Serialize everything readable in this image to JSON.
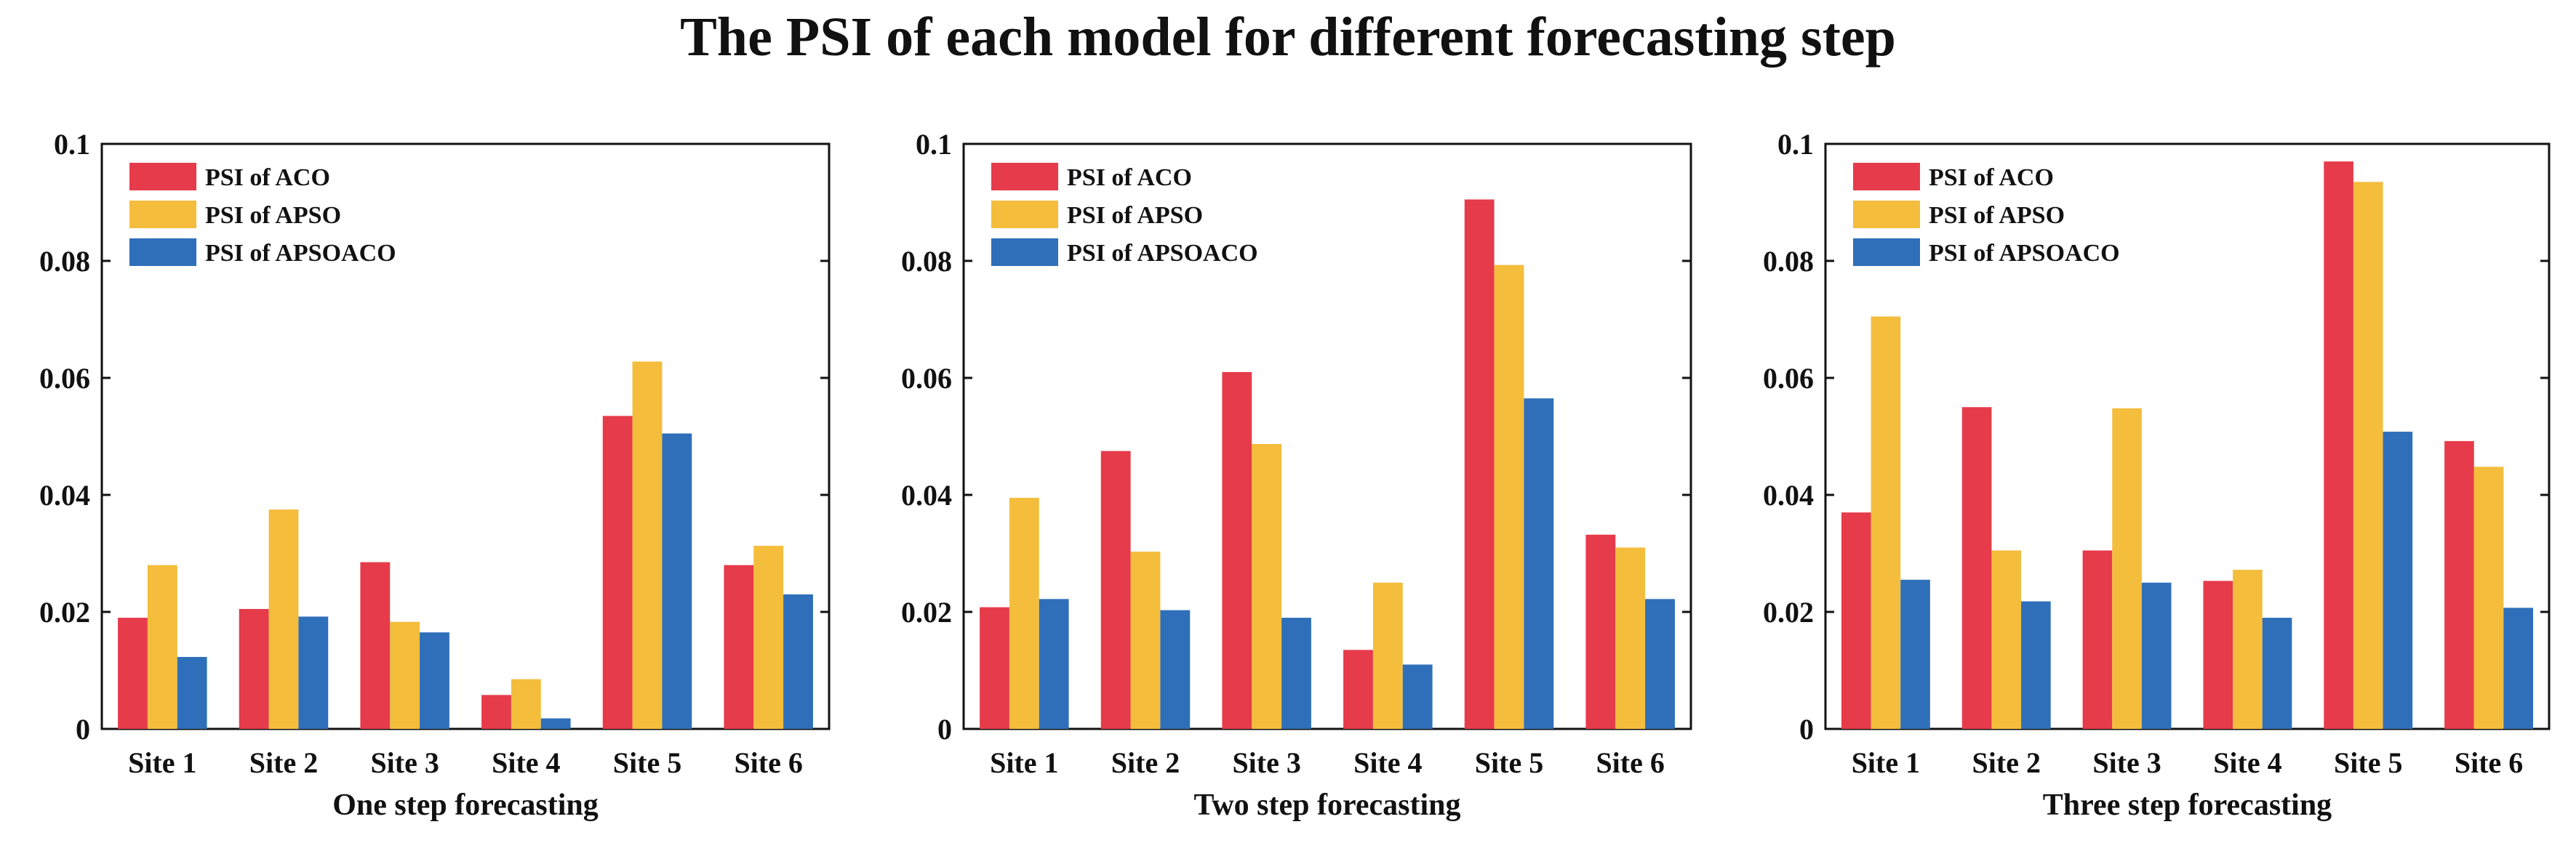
{
  "title": "The PSI of each model for different forecasting step",
  "colors": {
    "aco": "#e63b4a",
    "apso": "#f4bd3c",
    "apsoaco": "#2f6fba",
    "axis": "#111111"
  },
  "chart_data": [
    {
      "type": "bar",
      "xlabel": "One step forecasting",
      "ylabel": "",
      "ylim": [
        0,
        0.1
      ],
      "yticks": [
        "0",
        "0.02",
        "0.04",
        "0.06",
        "0.08",
        "0.1"
      ],
      "categories": [
        "Site 1",
        "Site 2",
        "Site 3",
        "Site 4",
        "Site 5",
        "Site 6"
      ],
      "legend_position": "top-left",
      "series": [
        {
          "name": "PSI of ACO",
          "values": [
            0.019,
            0.0205,
            0.0285,
            0.0058,
            0.0535,
            0.028
          ]
        },
        {
          "name": "PSI of APSO",
          "values": [
            0.028,
            0.0375,
            0.0183,
            0.0085,
            0.0628,
            0.0313
          ]
        },
        {
          "name": "PSI of APSOACO",
          "values": [
            0.0123,
            0.0192,
            0.0165,
            0.0018,
            0.0505,
            0.023
          ]
        }
      ]
    },
    {
      "type": "bar",
      "xlabel": "Two step forecasting",
      "ylabel": "",
      "ylim": [
        0,
        0.1
      ],
      "yticks": [
        "0",
        "0.02",
        "0.04",
        "0.06",
        "0.08",
        "0.1"
      ],
      "categories": [
        "Site 1",
        "Site 2",
        "Site 3",
        "Site 4",
        "Site 5",
        "Site 6"
      ],
      "legend_position": "top-left",
      "series": [
        {
          "name": "PSI of ACO",
          "values": [
            0.0208,
            0.0475,
            0.061,
            0.0135,
            0.0905,
            0.0332
          ]
        },
        {
          "name": "PSI of APSO",
          "values": [
            0.0395,
            0.0303,
            0.0487,
            0.025,
            0.0793,
            0.031
          ]
        },
        {
          "name": "PSI of APSOACO",
          "values": [
            0.0222,
            0.0203,
            0.019,
            0.011,
            0.0565,
            0.0222
          ]
        }
      ]
    },
    {
      "type": "bar",
      "xlabel": "Three step forecasting",
      "ylabel": "",
      "ylim": [
        0,
        0.1
      ],
      "yticks": [
        "0",
        "0.02",
        "0.04",
        "0.06",
        "0.08",
        "0.1"
      ],
      "categories": [
        "Site 1",
        "Site 2",
        "Site 3",
        "Site 4",
        "Site 5",
        "Site 6"
      ],
      "legend_position": "top-left",
      "series": [
        {
          "name": "PSI of ACO",
          "values": [
            0.037,
            0.055,
            0.0305,
            0.0253,
            0.097,
            0.0492
          ]
        },
        {
          "name": "PSI of APSO",
          "values": [
            0.0705,
            0.0305,
            0.0548,
            0.0272,
            0.0935,
            0.0448
          ]
        },
        {
          "name": "PSI of APSOACO",
          "values": [
            0.0255,
            0.0218,
            0.025,
            0.019,
            0.0508,
            0.0207
          ]
        }
      ]
    }
  ]
}
